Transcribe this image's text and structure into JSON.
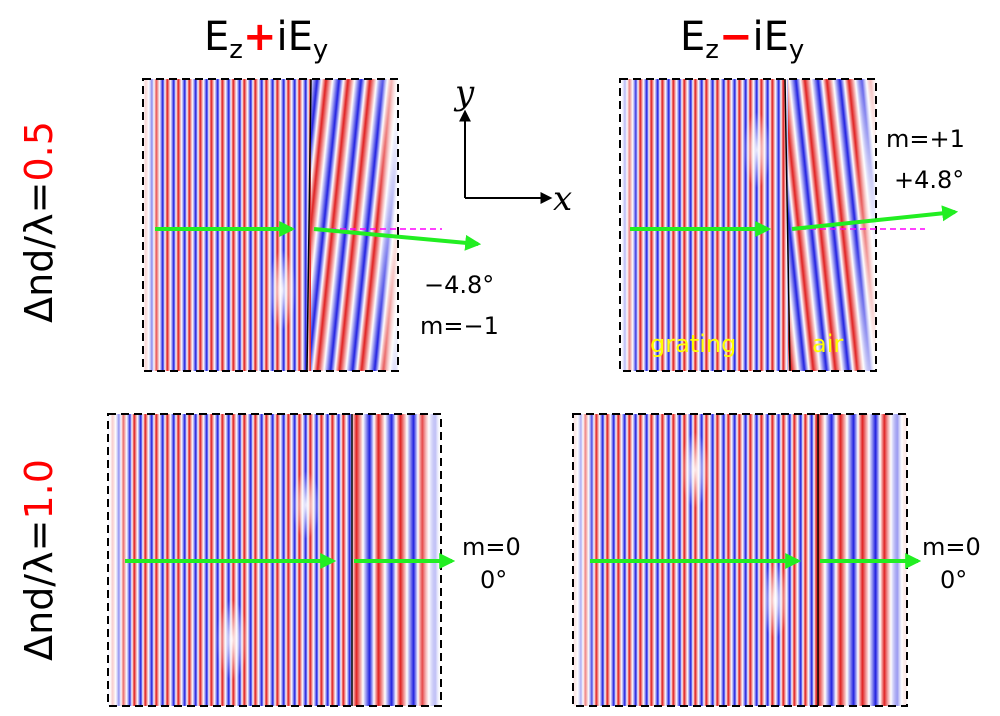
{
  "columns": {
    "left": {
      "base": "E",
      "base_sub": "z",
      "sign": "+",
      "tail": "iE",
      "tail_sub": "y"
    },
    "right": {
      "base": "E",
      "base_sub": "z",
      "sign": "−",
      "tail": "iE",
      "tail_sub": "y"
    }
  },
  "rows": {
    "top": {
      "prefix": "Δnd/λ=",
      "value": "0.5"
    },
    "bottom": {
      "prefix": "Δnd/λ=",
      "value": "1.0"
    }
  },
  "axes": {
    "y": "y",
    "x": "x"
  },
  "panels": {
    "p1": {
      "line1": "−4.8°",
      "line2": "m=−1"
    },
    "p2": {
      "line1": "m=+1",
      "line2": "+4.8°",
      "region_left": "grating",
      "region_right": "air"
    },
    "p3": {
      "line1": "m=0",
      "line2": "0°"
    },
    "p4": {
      "line1": "m=0",
      "line2": "0°"
    }
  },
  "colors": {
    "sign": "#ff0000",
    "row_value": "#ff0000",
    "arrow": "#22ee22",
    "reference_line": "#ff00ff",
    "region_label": "#ffff00",
    "wave_positive": "#d00000",
    "wave_negative": "#0000d0"
  }
}
